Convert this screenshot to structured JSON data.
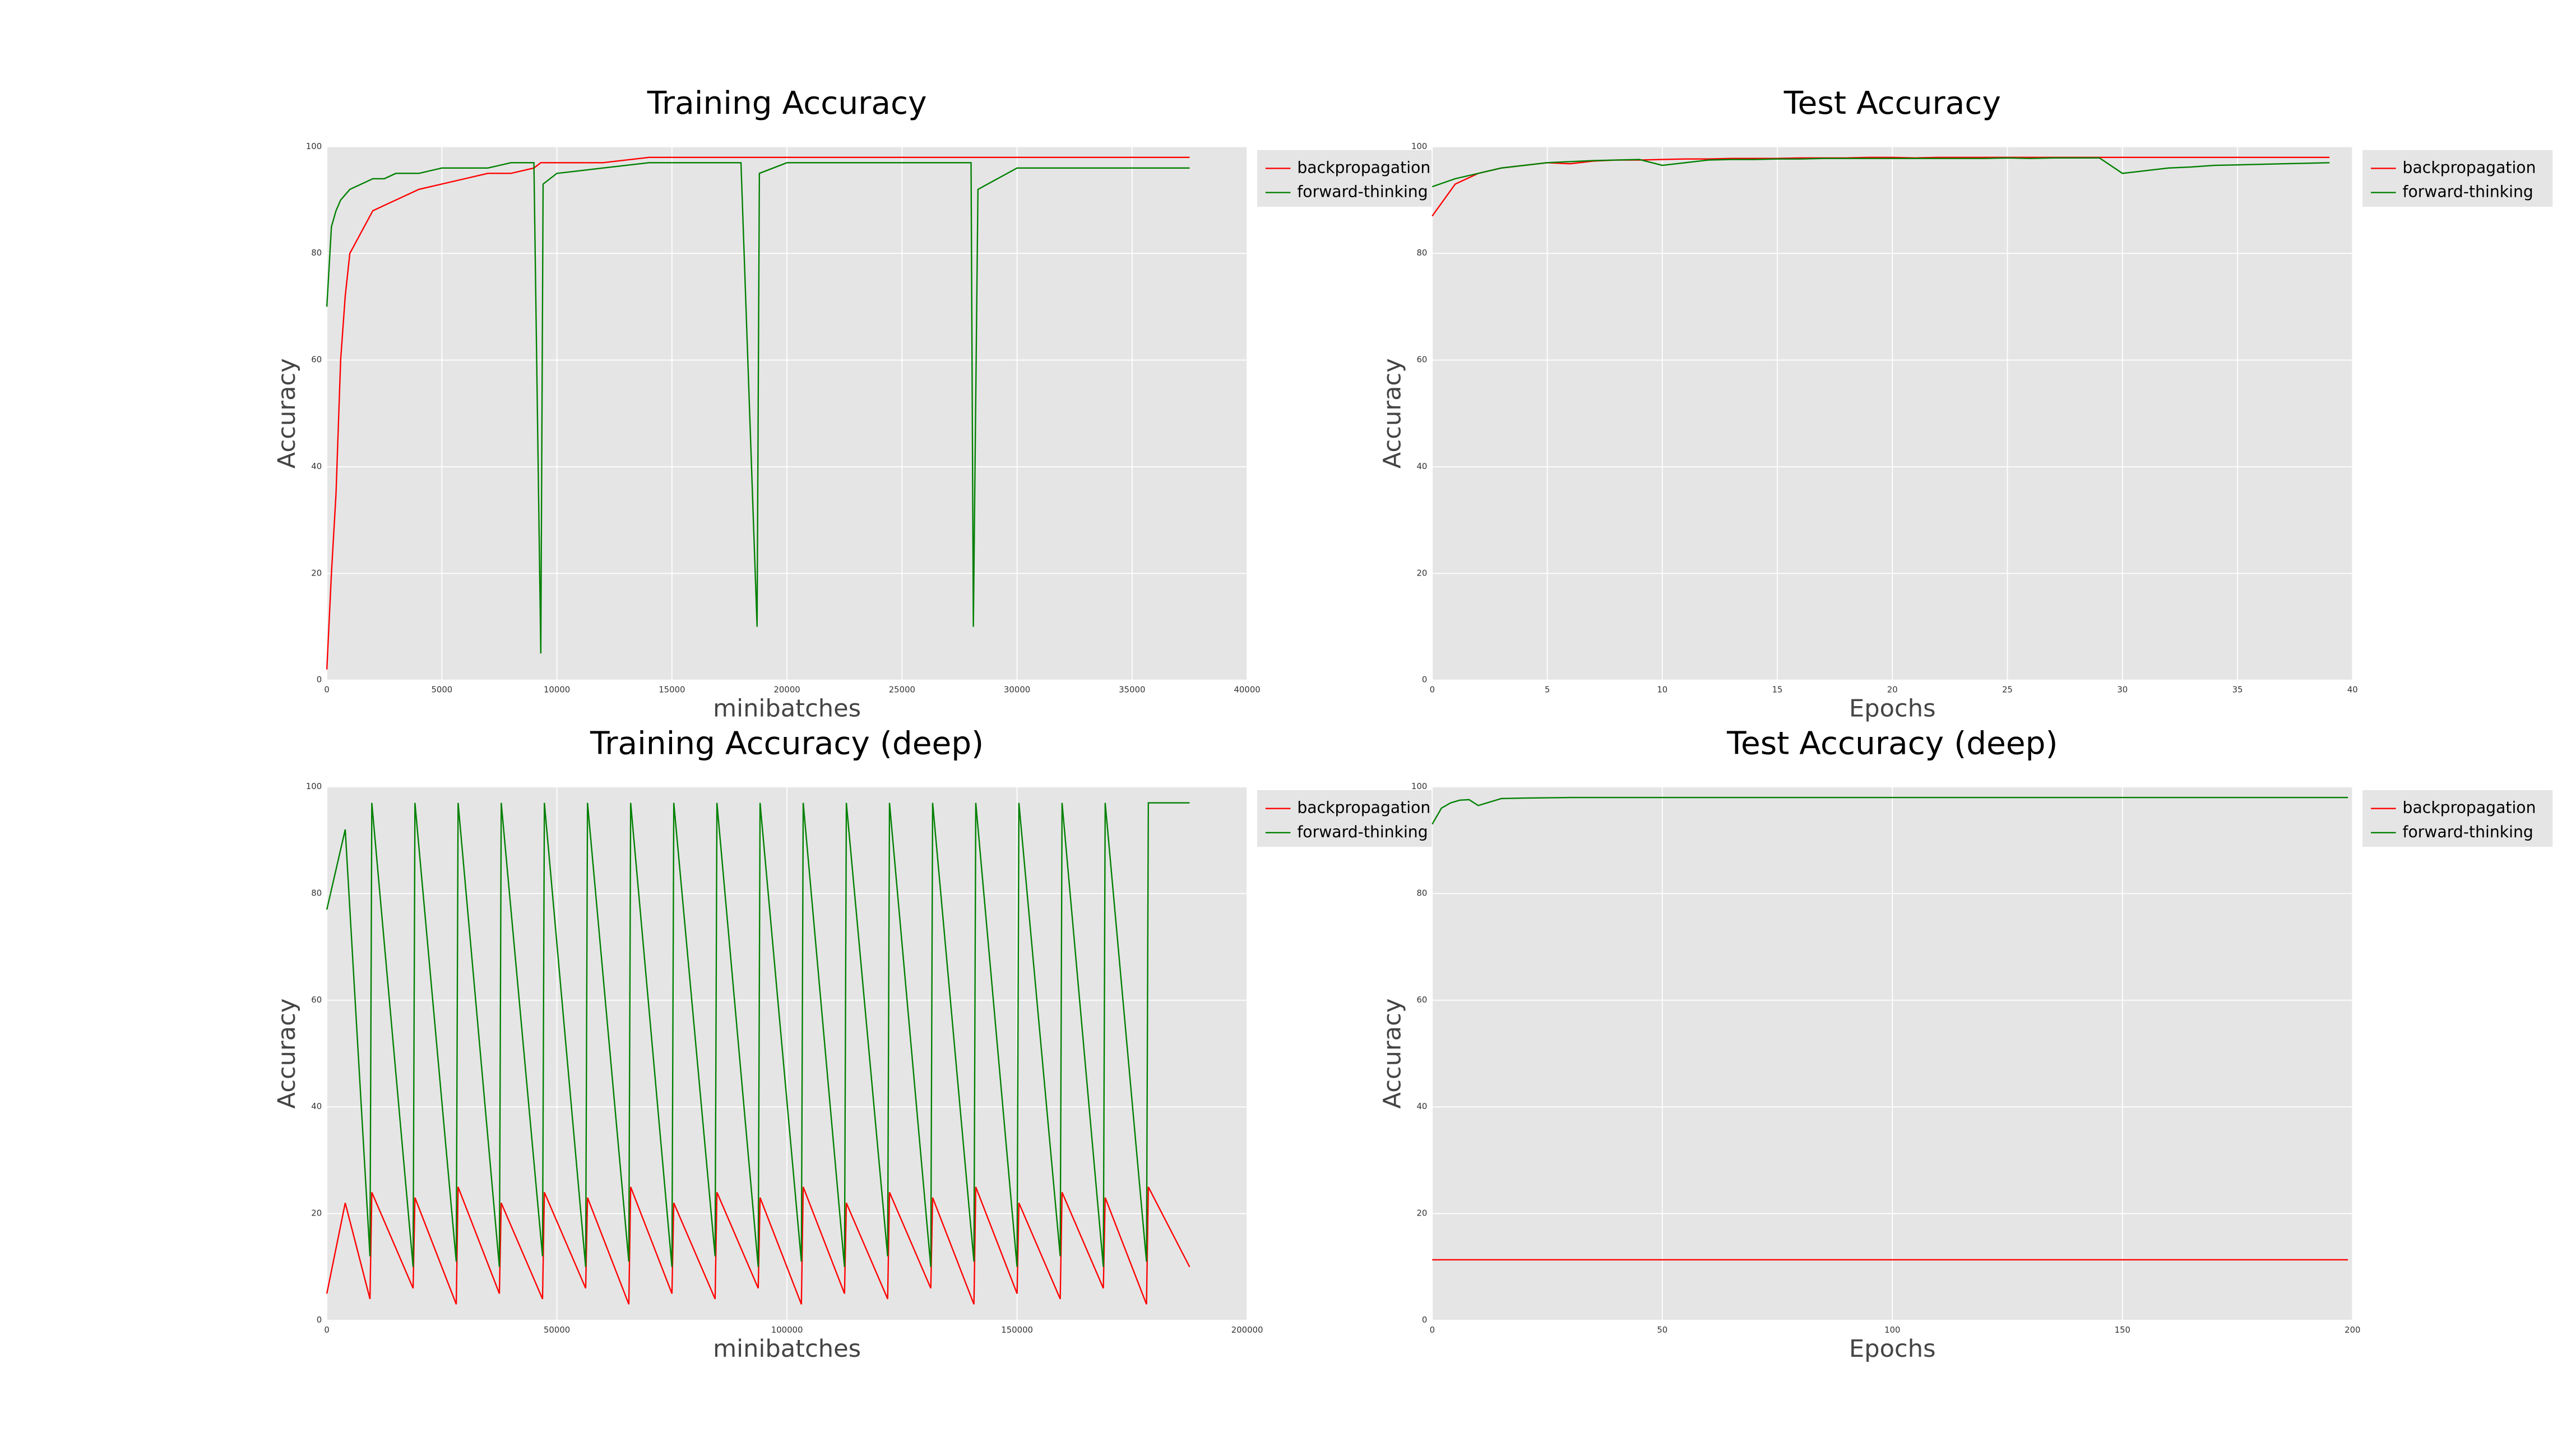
{
  "chart_data": [
    {
      "type": "line",
      "title": "Training Accuracy",
      "xlabel": "minibatches",
      "ylabel": "Accuracy",
      "xlim": [
        0,
        40000
      ],
      "xticks": [
        0,
        5000,
        10000,
        15000,
        20000,
        25000,
        30000,
        35000,
        40000
      ],
      "ylim": [
        0,
        100
      ],
      "yticks": [
        0,
        20,
        40,
        60,
        80,
        100
      ],
      "grid": true,
      "legend": "outside upper right",
      "x": [
        0,
        200,
        400,
        600,
        800,
        1000,
        1500,
        2000,
        2500,
        3000,
        4000,
        5000,
        6000,
        7000,
        8000,
        9000,
        9300,
        9400,
        10000,
        12000,
        14000,
        16000,
        18000,
        18700,
        18800,
        20000,
        22000,
        24000,
        26000,
        28000,
        28100,
        28300,
        30000,
        32000,
        34000,
        36000,
        37500
      ],
      "series": [
        {
          "name": "backpropagation",
          "color": "#ff0000",
          "values": [
            2,
            20,
            35,
            60,
            72,
            80,
            84,
            88,
            89,
            90,
            92,
            93,
            94,
            95,
            95,
            96,
            97,
            97,
            97,
            97,
            98,
            98,
            98,
            98,
            98,
            98,
            98,
            98,
            98,
            98,
            98,
            98,
            98,
            98,
            98,
            98,
            98
          ]
        },
        {
          "name": "forward-thinking",
          "color": "#008000",
          "values": [
            70,
            85,
            88,
            90,
            91,
            92,
            93,
            94,
            94,
            95,
            95,
            96,
            96,
            96,
            97,
            97,
            5,
            93,
            95,
            96,
            97,
            97,
            97,
            10,
            95,
            97,
            97,
            97,
            97,
            97,
            10,
            92,
            96,
            96,
            96,
            96,
            96
          ]
        }
      ]
    },
    {
      "type": "line",
      "title": "Test Accuracy",
      "xlabel": "Epochs",
      "ylabel": "Accuracy",
      "xlim": [
        0,
        40
      ],
      "xticks": [
        0,
        5,
        10,
        15,
        20,
        25,
        30,
        35,
        40
      ],
      "ylim": [
        0,
        100
      ],
      "yticks": [
        0,
        20,
        40,
        60,
        80,
        100
      ],
      "grid": true,
      "legend": "outside upper right",
      "x": [
        0,
        1,
        2,
        3,
        4,
        5,
        6,
        7,
        8,
        9,
        10,
        11,
        12,
        13,
        14,
        15,
        16,
        17,
        18,
        19,
        20,
        21,
        22,
        23,
        24,
        25,
        26,
        27,
        28,
        29,
        30,
        31,
        32,
        33,
        34,
        35,
        36,
        37,
        38,
        39
      ],
      "series": [
        {
          "name": "backpropagation",
          "color": "#ff0000",
          "values": [
            87,
            93,
            95,
            96,
            96.5,
            97,
            96.8,
            97.3,
            97.5,
            97.5,
            97.6,
            97.7,
            97.7,
            97.8,
            97.8,
            97.8,
            97.9,
            97.9,
            97.9,
            98,
            98,
            97.9,
            98,
            98,
            98,
            98,
            98,
            98,
            98,
            98,
            98,
            98,
            98,
            98,
            98,
            98,
            98,
            98,
            98,
            98
          ]
        },
        {
          "name": "forward-thinking",
          "color": "#008000",
          "values": [
            92.5,
            94,
            95,
            96,
            96.5,
            97,
            97.2,
            97.4,
            97.5,
            97.6,
            96.5,
            97,
            97.5,
            97.6,
            97.6,
            97.7,
            97.7,
            97.8,
            97.8,
            97.8,
            97.8,
            97.8,
            97.8,
            97.8,
            97.8,
            97.9,
            97.8,
            97.9,
            97.9,
            97.9,
            95,
            95.5,
            96,
            96.2,
            96.5,
            96.6,
            96.7,
            96.8,
            96.9,
            97
          ]
        }
      ]
    },
    {
      "type": "line",
      "title": "Training Accuracy (deep)",
      "xlabel": "minibatches",
      "ylabel": "Accuracy",
      "xlim": [
        0,
        200000
      ],
      "xticks": [
        0,
        50000,
        100000,
        150000,
        200000
      ],
      "ylim": [
        0,
        100
      ],
      "yticks": [
        0,
        20,
        40,
        60,
        80,
        100
      ],
      "grid": true,
      "legend": "outside upper right",
      "x": [
        0,
        4000,
        9375,
        9775,
        18750,
        19150,
        28125,
        28525,
        37500,
        37900,
        46875,
        47275,
        56250,
        56650,
        65625,
        66025,
        75000,
        75400,
        84375,
        84775,
        93750,
        94150,
        103125,
        103525,
        112500,
        112900,
        121875,
        122275,
        131250,
        131650,
        140625,
        141025,
        150000,
        150400,
        159375,
        159775,
        168750,
        169150,
        178125,
        178525,
        187500
      ],
      "series": [
        {
          "name": "backpropagation",
          "color": "#ff0000",
          "values": [
            5,
            22,
            4,
            24,
            6,
            23,
            3,
            25,
            5,
            22,
            4,
            24,
            6,
            23,
            3,
            25,
            5,
            22,
            4,
            24,
            6,
            23,
            3,
            25,
            5,
            22,
            4,
            24,
            6,
            23,
            3,
            25,
            5,
            22,
            4,
            24,
            6,
            23,
            3,
            25,
            10
          ]
        },
        {
          "name": "forward-thinking",
          "color": "#008000",
          "values": [
            77,
            92,
            12,
            97,
            10,
            97,
            11,
            97,
            10,
            97,
            12,
            97,
            10,
            97,
            11,
            97,
            10,
            97,
            12,
            97,
            10,
            97,
            11,
            97,
            10,
            97,
            12,
            97,
            10,
            97,
            11,
            97,
            10,
            97,
            12,
            97,
            10,
            97,
            11,
            97,
            97
          ]
        }
      ]
    },
    {
      "type": "line",
      "title": "Test Accuracy (deep)",
      "xlabel": "Epochs",
      "ylabel": "Accuracy",
      "xlim": [
        0,
        200
      ],
      "xticks": [
        0,
        50,
        100,
        150,
        200
      ],
      "ylim": [
        0,
        100
      ],
      "yticks": [
        0,
        20,
        40,
        60,
        80,
        100
      ],
      "grid": true,
      "legend": "outside upper right",
      "x": [
        0,
        2,
        4,
        6,
        8,
        10,
        15,
        20,
        30,
        40,
        50,
        60,
        70,
        80,
        90,
        100,
        110,
        120,
        130,
        140,
        150,
        160,
        170,
        180,
        190,
        199
      ],
      "series": [
        {
          "name": "backpropagation",
          "color": "#ff0000",
          "values": [
            11.35,
            11.35,
            11.35,
            11.35,
            11.35,
            11.35,
            11.35,
            11.35,
            11.35,
            11.35,
            11.35,
            11.35,
            11.35,
            11.35,
            11.35,
            11.35,
            11.35,
            11.35,
            11.35,
            11.35,
            11.35,
            11.35,
            11.35,
            11.35,
            11.35,
            11.35
          ]
        },
        {
          "name": "forward-thinking",
          "color": "#008000",
          "values": [
            93,
            96,
            97,
            97.5,
            97.6,
            96.5,
            97.8,
            97.9,
            98,
            98,
            98,
            98,
            98,
            98,
            98,
            98,
            98,
            98,
            98,
            98,
            98,
            98,
            98,
            98,
            98,
            98
          ]
        }
      ]
    }
  ]
}
